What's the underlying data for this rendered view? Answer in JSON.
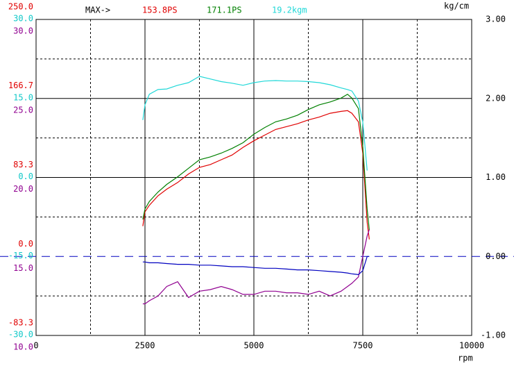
{
  "chart_data": {
    "type": "line",
    "max_label": "MAX->",
    "x_unit": "rpm",
    "y2_unit": "kg/cm",
    "x": [
      2450,
      2500,
      2600,
      2800,
      3000,
      3250,
      3500,
      3750,
      4000,
      4250,
      4500,
      4750,
      5000,
      5250,
      5500,
      5750,
      6000,
      6250,
      6500,
      6750,
      7000,
      7150,
      7250,
      7400,
      7500,
      7600,
      7650
    ],
    "xlim": [
      0,
      10000
    ],
    "xticks": [
      0,
      2500,
      5000,
      7500,
      10000
    ],
    "xminorticks": [
      1250,
      3750,
      6250,
      8750
    ],
    "y2lim": [
      -1,
      3
    ],
    "y2ticks": [
      {
        "value": -1,
        "label": "-1.00"
      },
      {
        "value": 0,
        "label": "0.00"
      },
      {
        "value": 1,
        "label": "1.00"
      },
      {
        "value": 2,
        "label": "2.00"
      },
      {
        "value": 3,
        "label": "3.00"
      }
    ],
    "y2minorticks": [
      -0.5,
      0.5,
      1.5,
      2.5
    ],
    "left_axes": [
      {
        "color": "#e00000",
        "ylim": [
          -83.3,
          250.0
        ],
        "yticks": [
          {
            "value": 250.0,
            "label": "250.0"
          },
          {
            "value": 166.7,
            "label": "166.7"
          },
          {
            "value": 83.3,
            "label": "83.3"
          },
          {
            "value": 0,
            "label": "0.0"
          },
          {
            "value": -83.3,
            "label": "-83.3"
          }
        ]
      },
      {
        "color": "#10c8c8",
        "ylim": [
          -30,
          30
        ],
        "yticks": [
          {
            "value": 30,
            "label": "30.0"
          },
          {
            "value": 15,
            "label": "15.0"
          },
          {
            "value": 0,
            "label": "0.0"
          },
          {
            "value": -15,
            "label": "-15.0"
          },
          {
            "value": -30,
            "label": "-30.0"
          }
        ]
      },
      {
        "color": "#900090",
        "ylim": [
          10,
          30
        ],
        "yticks": [
          {
            "value": 30,
            "label": "30.0"
          },
          {
            "value": 25,
            "label": "25.0"
          },
          {
            "value": 20,
            "label": "20.0"
          },
          {
            "value": 15,
            "label": "15.0"
          },
          {
            "value": 10,
            "label": "10.0"
          }
        ]
      }
    ],
    "series": [
      {
        "color": "#e00000",
        "axis": 0,
        "max_label": "153.8PS",
        "values": [
          32,
          47,
          54,
          64,
          71,
          78,
          87,
          94,
          97,
          102,
          107,
          115,
          122,
          128,
          134,
          137,
          140,
          144,
          147,
          151,
          153,
          153.8,
          151,
          142,
          109,
          36,
          18
        ]
      },
      {
        "color": "#008000",
        "axis": 0,
        "max_label": "171.1PS",
        "values": [
          39,
          50,
          58,
          68,
          76,
          84,
          93,
          102,
          105,
          109,
          114,
          120,
          129,
          136,
          142,
          145,
          149,
          155,
          160,
          163,
          167,
          171.1,
          167,
          156,
          116,
          50,
          28
        ]
      },
      {
        "color": "#20d8d8",
        "axis": 1,
        "max_label": "19.2kgm",
        "values": [
          10.9,
          13.8,
          15.8,
          16.7,
          16.8,
          17.5,
          18.0,
          19.2,
          18.7,
          18.2,
          17.9,
          17.5,
          18.0,
          18.3,
          18.4,
          18.3,
          18.3,
          18.2,
          18.0,
          17.6,
          17.0,
          16.7,
          16.4,
          14.5,
          10.5,
          1.3,
          null
        ]
      },
      {
        "color": "#900090",
        "axis": 2,
        "values": [
          12.0,
          12.0,
          12.2,
          12.5,
          13.1,
          13.4,
          12.4,
          12.8,
          12.9,
          13.1,
          12.9,
          12.6,
          12.6,
          12.8,
          12.8,
          12.7,
          12.7,
          12.6,
          12.8,
          12.5,
          12.8,
          13.1,
          13.3,
          13.7,
          15.0,
          16.3,
          16.7
        ]
      },
      {
        "color": "#0000c0",
        "axis": "y2",
        "values": [
          -0.07,
          -0.07,
          -0.08,
          -0.08,
          -0.09,
          -0.1,
          -0.1,
          -0.11,
          -0.11,
          -0.12,
          -0.13,
          -0.13,
          -0.14,
          -0.15,
          -0.15,
          -0.16,
          -0.17,
          -0.17,
          -0.18,
          -0.19,
          -0.2,
          -0.21,
          -0.22,
          -0.23,
          -0.18,
          0.0,
          0.0
        ]
      }
    ]
  }
}
